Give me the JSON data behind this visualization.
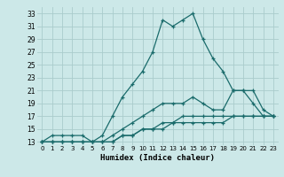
{
  "xlabel": "Humidex (Indice chaleur)",
  "bg_color": "#cce8e8",
  "grid_color": "#aacccc",
  "line_color": "#1a6b6b",
  "xlim": [
    -0.5,
    23.5
  ],
  "ylim": [
    12.5,
    34
  ],
  "yticks": [
    13,
    15,
    17,
    19,
    21,
    23,
    25,
    27,
    29,
    31,
    33
  ],
  "xticks": [
    0,
    1,
    2,
    3,
    4,
    5,
    6,
    7,
    8,
    9,
    10,
    11,
    12,
    13,
    14,
    15,
    16,
    17,
    18,
    19,
    20,
    21,
    22,
    23
  ],
  "series": [
    {
      "x": [
        0,
        1,
        2,
        3,
        4,
        5,
        6,
        7,
        8,
        9,
        10,
        11,
        12,
        13,
        14,
        15,
        16,
        17,
        18,
        19,
        20,
        21,
        22,
        23
      ],
      "y": [
        13,
        14,
        14,
        14,
        14,
        13,
        14,
        17,
        20,
        22,
        24,
        27,
        32,
        31,
        32,
        33,
        29,
        26,
        24,
        21,
        21,
        19,
        17,
        17
      ]
    },
    {
      "x": [
        0,
        1,
        2,
        3,
        4,
        5,
        6,
        7,
        8,
        9,
        10,
        11,
        12,
        13,
        14,
        15,
        16,
        17,
        18,
        19,
        20,
        21,
        22,
        23
      ],
      "y": [
        13,
        13,
        13,
        13,
        13,
        13,
        13,
        14,
        15,
        16,
        17,
        18,
        19,
        19,
        19,
        20,
        19,
        18,
        18,
        21,
        21,
        21,
        18,
        17
      ]
    },
    {
      "x": [
        0,
        1,
        2,
        3,
        4,
        5,
        6,
        7,
        8,
        9,
        10,
        11,
        12,
        13,
        14,
        15,
        16,
        17,
        18,
        19,
        20,
        21,
        22,
        23
      ],
      "y": [
        13,
        13,
        13,
        13,
        13,
        13,
        13,
        13,
        14,
        14,
        15,
        15,
        16,
        16,
        17,
        17,
        17,
        17,
        17,
        17,
        17,
        17,
        17,
        17
      ]
    },
    {
      "x": [
        0,
        1,
        2,
        3,
        4,
        5,
        6,
        7,
        8,
        9,
        10,
        11,
        12,
        13,
        14,
        15,
        16,
        17,
        18,
        19,
        20,
        21,
        22,
        23
      ],
      "y": [
        13,
        13,
        13,
        13,
        13,
        13,
        13,
        13,
        14,
        14,
        15,
        15,
        15,
        16,
        16,
        16,
        16,
        16,
        16,
        17,
        17,
        17,
        17,
        17
      ]
    }
  ]
}
